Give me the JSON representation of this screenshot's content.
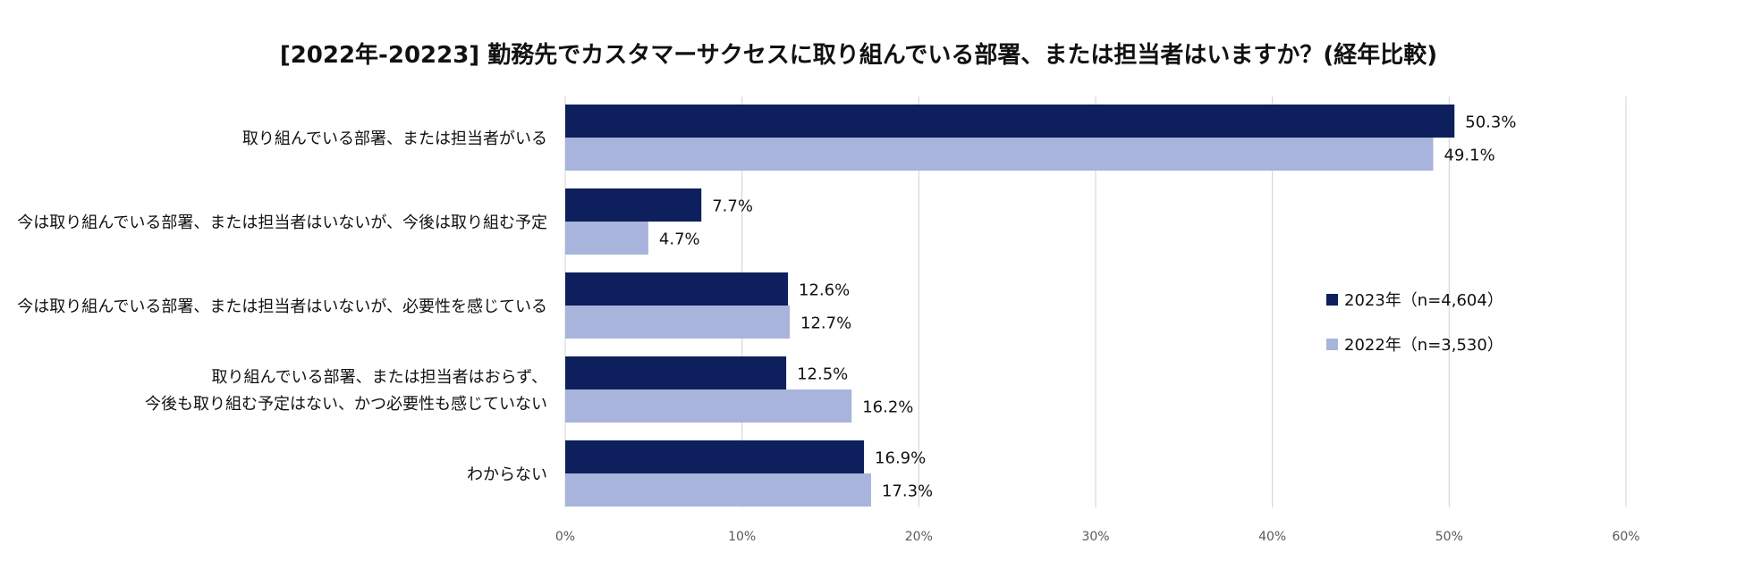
{
  "chart_data": {
    "type": "bar",
    "orientation": "horizontal",
    "title": "[2022年-20223] 勤務先でカスタマーサクセスに取り組んでいる部署、または担当者はいますか？(経年比較)",
    "categories": [
      [
        "取り組んでいる部署、または担当者がいる"
      ],
      [
        "今は取り組んでいる部署、または担当者はいないが、今後は取り組む予定"
      ],
      [
        "今は取り組んでいる部署、または担当者はいないが、必要性を感じている"
      ],
      [
        "取り組んでいる部署、または担当者はおらず、",
        "今後も取り組む予定はない、かつ必要性も感じていない"
      ],
      [
        "わからない"
      ]
    ],
    "series": [
      {
        "name": "2023年（n=4,604）",
        "color": "#0d1f5c",
        "values": [
          50.3,
          7.7,
          12.6,
          12.5,
          16.9
        ],
        "labels": [
          "50.3%",
          "7.7%",
          "12.6%",
          "12.5%",
          "16.9%"
        ]
      },
      {
        "name": "2022年（n=3,530）",
        "color": "#a8b4db",
        "values": [
          49.1,
          4.7,
          12.7,
          16.2,
          17.3
        ],
        "labels": [
          "49.1%",
          "4.7%",
          "12.7%",
          "16.2%",
          "17.3%"
        ]
      }
    ],
    "xlim": [
      0,
      60
    ],
    "xticks": [
      0,
      10,
      20,
      30,
      40,
      50,
      60
    ],
    "xtick_labels": [
      "0%",
      "10%",
      "20%",
      "30%",
      "40%",
      "50%",
      "60%"
    ],
    "grid": true,
    "legend_position": "right"
  }
}
